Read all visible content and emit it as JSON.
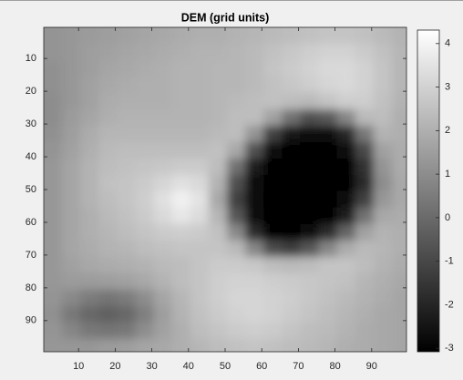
{
  "chart_data": {
    "type": "heatmap",
    "title": "DEM (grid units)",
    "x": [
      3,
      8,
      13,
      18,
      23,
      28,
      33,
      38,
      43,
      48,
      53,
      58,
      63,
      68,
      73,
      78,
      83,
      88,
      93,
      98
    ],
    "y": [
      3,
      8,
      13,
      18,
      23,
      28,
      33,
      38,
      43,
      48,
      53,
      58,
      63,
      68,
      73,
      78,
      83,
      88,
      93,
      98
    ],
    "values": [
      [
        1.2,
        1.3,
        1.4,
        1.5,
        1.6,
        1.7,
        1.8,
        1.9,
        2.0,
        2.0,
        2.1,
        2.2,
        2.3,
        2.4,
        2.5,
        2.6,
        2.6,
        2.5,
        2.3,
        2.1
      ],
      [
        1.2,
        1.3,
        1.5,
        1.6,
        1.7,
        1.8,
        1.9,
        2.0,
        2.1,
        2.1,
        2.2,
        2.3,
        2.5,
        2.7,
        2.9,
        3.0,
        3.0,
        2.8,
        2.5,
        2.2
      ],
      [
        1.1,
        1.3,
        1.5,
        1.7,
        1.8,
        1.9,
        2.0,
        2.1,
        2.1,
        2.2,
        2.2,
        2.3,
        2.6,
        2.8,
        3.0,
        3.2,
        3.2,
        3.0,
        2.6,
        2.2
      ],
      [
        1.1,
        1.3,
        1.6,
        1.8,
        1.9,
        2.0,
        2.0,
        2.1,
        2.1,
        2.2,
        2.2,
        2.3,
        2.5,
        2.7,
        2.9,
        3.1,
        3.2,
        3.0,
        2.6,
        2.2
      ],
      [
        1.0,
        1.3,
        1.6,
        1.9,
        2.0,
        2.0,
        2.0,
        2.1,
        2.1,
        2.2,
        2.3,
        2.4,
        2.5,
        2.4,
        2.3,
        2.6,
        2.9,
        2.9,
        2.5,
        2.1
      ],
      [
        1.0,
        1.4,
        1.7,
        2.0,
        2.1,
        2.1,
        2.1,
        2.1,
        2.1,
        2.2,
        2.4,
        2.4,
        1.6,
        0.2,
        -0.8,
        -0.5,
        0.8,
        2.3,
        2.4,
        2.0
      ],
      [
        1.1,
        1.5,
        1.9,
        2.2,
        2.2,
        2.2,
        2.2,
        2.2,
        2.2,
        2.3,
        2.4,
        1.2,
        -1.2,
        -2.5,
        -2.8,
        -2.7,
        -2.0,
        0.4,
        2.1,
        2.0
      ],
      [
        1.2,
        1.6,
        2.0,
        2.3,
        2.4,
        2.4,
        2.4,
        2.4,
        2.4,
        2.5,
        1.8,
        -0.8,
        -2.6,
        -3.0,
        -3.0,
        -3.0,
        -2.8,
        -1.0,
        1.6,
        1.9
      ],
      [
        1.3,
        1.7,
        2.1,
        2.4,
        2.5,
        2.6,
        2.7,
        2.8,
        2.8,
        2.4,
        0.2,
        -2.2,
        -2.9,
        -3.0,
        -3.0,
        -3.0,
        -2.9,
        -1.6,
        1.2,
        1.9
      ],
      [
        1.3,
        1.7,
        2.1,
        2.5,
        2.6,
        2.8,
        3.1,
        3.4,
        3.2,
        2.1,
        -0.8,
        -2.6,
        -2.9,
        -3.0,
        -3.0,
        -3.0,
        -2.9,
        -1.8,
        1.0,
        1.8
      ],
      [
        1.3,
        1.7,
        2.1,
        2.4,
        2.6,
        2.9,
        3.4,
        3.9,
        3.5,
        1.8,
        -1.2,
        -2.7,
        -3.0,
        -3.0,
        -3.0,
        -3.0,
        -2.8,
        -1.2,
        1.3,
        1.8
      ],
      [
        1.3,
        1.7,
        2.0,
        2.3,
        2.5,
        2.8,
        3.2,
        3.6,
        3.3,
        2.2,
        -0.6,
        -2.6,
        -3.0,
        -3.0,
        -3.0,
        -2.9,
        -2.2,
        0.2,
        1.8,
        1.9
      ],
      [
        1.3,
        1.7,
        2.0,
        2.2,
        2.4,
        2.6,
        2.8,
        2.9,
        2.8,
        2.5,
        0.9,
        -1.8,
        -2.9,
        -3.0,
        -2.8,
        -1.8,
        -0.2,
        1.6,
        2.1,
        2.0
      ],
      [
        1.3,
        1.7,
        1.9,
        2.1,
        2.2,
        2.4,
        2.5,
        2.6,
        2.6,
        2.6,
        2.3,
        0.8,
        -0.9,
        -1.3,
        -0.6,
        0.8,
        1.9,
        2.3,
        2.2,
        2.0
      ],
      [
        1.3,
        1.6,
        1.8,
        1.9,
        2.0,
        2.1,
        2.3,
        2.4,
        2.6,
        2.8,
        2.8,
        2.7,
        2.4,
        2.3,
        2.4,
        2.6,
        2.6,
        2.4,
        2.1,
        1.9
      ],
      [
        1.3,
        1.4,
        1.4,
        1.5,
        1.6,
        1.8,
        2.1,
        2.4,
        2.6,
        2.9,
        3.0,
        3.0,
        2.9,
        2.8,
        2.7,
        2.6,
        2.5,
        2.2,
        2.0,
        1.8
      ],
      [
        1.2,
        0.9,
        0.5,
        0.3,
        0.5,
        1.0,
        1.7,
        2.2,
        2.6,
        2.9,
        3.1,
        3.1,
        3.0,
        2.9,
        2.7,
        2.5,
        2.3,
        2.1,
        1.9,
        1.7
      ],
      [
        1.1,
        0.4,
        -0.1,
        -0.3,
        -0.1,
        0.6,
        1.5,
        2.1,
        2.5,
        2.8,
        3.0,
        3.1,
        3.0,
        2.8,
        2.6,
        2.4,
        2.2,
        2.0,
        1.8,
        1.7
      ],
      [
        1.2,
        0.8,
        0.4,
        0.3,
        0.4,
        1.0,
        1.6,
        2.0,
        2.4,
        2.6,
        2.8,
        2.9,
        2.8,
        2.6,
        2.4,
        2.3,
        2.1,
        1.9,
        1.8,
        1.7
      ],
      [
        1.3,
        1.3,
        1.3,
        1.4,
        1.5,
        1.7,
        1.8,
        2.0,
        2.2,
        2.4,
        2.5,
        2.6,
        2.5,
        2.4,
        2.3,
        2.2,
        2.0,
        1.9,
        1.8,
        1.7
      ]
    ],
    "xlim": [
      0.5,
      99.5
    ],
    "ylim": [
      0.5,
      99.5
    ],
    "y_reversed": true,
    "xticks": [
      10,
      20,
      30,
      40,
      50,
      60,
      70,
      80,
      90
    ],
    "yticks": [
      10,
      20,
      30,
      40,
      50,
      60,
      70,
      80,
      90
    ],
    "clim": [
      -3.08,
      4.31
    ],
    "cticks": [
      -3,
      -2,
      -1,
      0,
      1,
      2,
      3,
      4
    ],
    "colormap": [
      "#000000",
      "#ffffff"
    ]
  }
}
